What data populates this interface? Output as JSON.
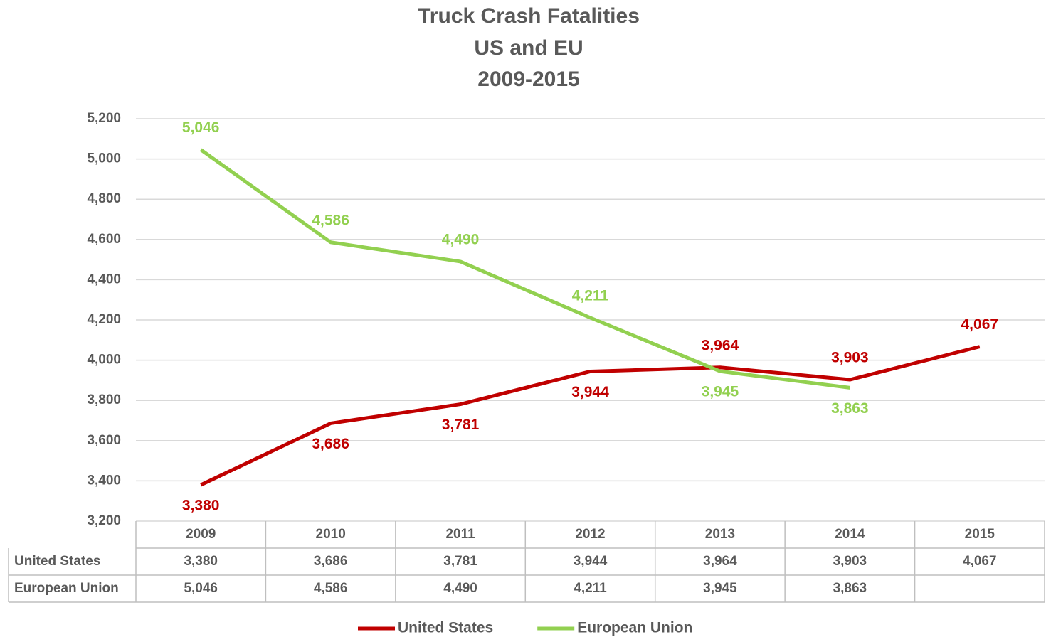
{
  "chart_data": {
    "type": "line",
    "title": [
      "Truck Crash Fatalities",
      "US and EU",
      "2009-2015"
    ],
    "categories": [
      "2009",
      "2010",
      "2011",
      "2012",
      "2013",
      "2014",
      "2015"
    ],
    "series": [
      {
        "name": "United States",
        "color": "#c00000",
        "values": [
          3380,
          3686,
          3781,
          3944,
          3964,
          3903,
          4067
        ],
        "value_labels": [
          "3,380",
          "3,686",
          "3,781",
          "3,944",
          "3,964",
          "3,903",
          "4,067"
        ]
      },
      {
        "name": "European Union",
        "color": "#92d050",
        "values": [
          5046,
          4586,
          4490,
          4211,
          3945,
          3863,
          null
        ],
        "value_labels": [
          "5,046",
          "4,586",
          "4,490",
          "4,211",
          "3,945",
          "3,863",
          null
        ]
      }
    ],
    "ylim": [
      3200,
      5200
    ],
    "yticks": [
      {
        "value": 3200,
        "label": "3,200"
      },
      {
        "value": 3400,
        "label": "3,400"
      },
      {
        "value": 3600,
        "label": "3,600"
      },
      {
        "value": 3800,
        "label": "3,800"
      },
      {
        "value": 4000,
        "label": "4,000"
      },
      {
        "value": 4200,
        "label": "4,200"
      },
      {
        "value": 4400,
        "label": "4,400"
      },
      {
        "value": 4600,
        "label": "4,600"
      },
      {
        "value": 4800,
        "label": "4,800"
      },
      {
        "value": 5000,
        "label": "5,000"
      },
      {
        "value": 5200,
        "label": "5,200"
      }
    ],
    "grid": true,
    "legend": "bottom"
  }
}
